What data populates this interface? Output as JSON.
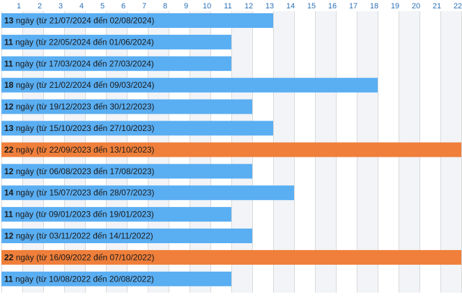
{
  "chart_data": {
    "type": "bar",
    "orientation": "horizontal",
    "x_ticks": [
      1,
      2,
      3,
      4,
      5,
      6,
      7,
      8,
      9,
      10,
      11,
      12,
      13,
      14,
      15,
      16,
      17,
      18,
      19,
      20,
      21,
      22
    ],
    "xlim": [
      0,
      22
    ],
    "grid": true,
    "unit": "ngày",
    "colors": {
      "normal": "#5aaef2",
      "highlight": "#ef7f3a",
      "grid": "#d9d9d9",
      "band": "#f2f4f7",
      "tick": "#2a6fb5"
    },
    "rows": [
      {
        "value": 13,
        "start": "21/07/2024",
        "end": "02/08/2024",
        "highlight": false
      },
      {
        "value": 11,
        "start": "22/05/2024",
        "end": "01/06/2024",
        "highlight": false
      },
      {
        "value": 11,
        "start": "17/03/2024",
        "end": "27/03/2024",
        "highlight": false
      },
      {
        "value": 18,
        "start": "21/02/2024",
        "end": "09/03/2024",
        "highlight": false
      },
      {
        "value": 12,
        "start": "19/12/2023",
        "end": "30/12/2023",
        "highlight": false
      },
      {
        "value": 13,
        "start": "15/10/2023",
        "end": "27/10/2023",
        "highlight": false
      },
      {
        "value": 22,
        "start": "22/09/2023",
        "end": "13/10/2023",
        "highlight": true
      },
      {
        "value": 12,
        "start": "06/08/2023",
        "end": "17/08/2023",
        "highlight": false
      },
      {
        "value": 14,
        "start": "15/07/2023",
        "end": "28/07/2023",
        "highlight": false
      },
      {
        "value": 11,
        "start": "09/01/2023",
        "end": "19/01/2023",
        "highlight": false
      },
      {
        "value": 12,
        "start": "03/11/2022",
        "end": "14/11/2022",
        "highlight": false
      },
      {
        "value": 22,
        "start": "16/09/2022",
        "end": "07/10/2022",
        "highlight": true
      },
      {
        "value": 11,
        "start": "10/08/2022",
        "end": "20/08/2022",
        "highlight": false
      }
    ]
  }
}
